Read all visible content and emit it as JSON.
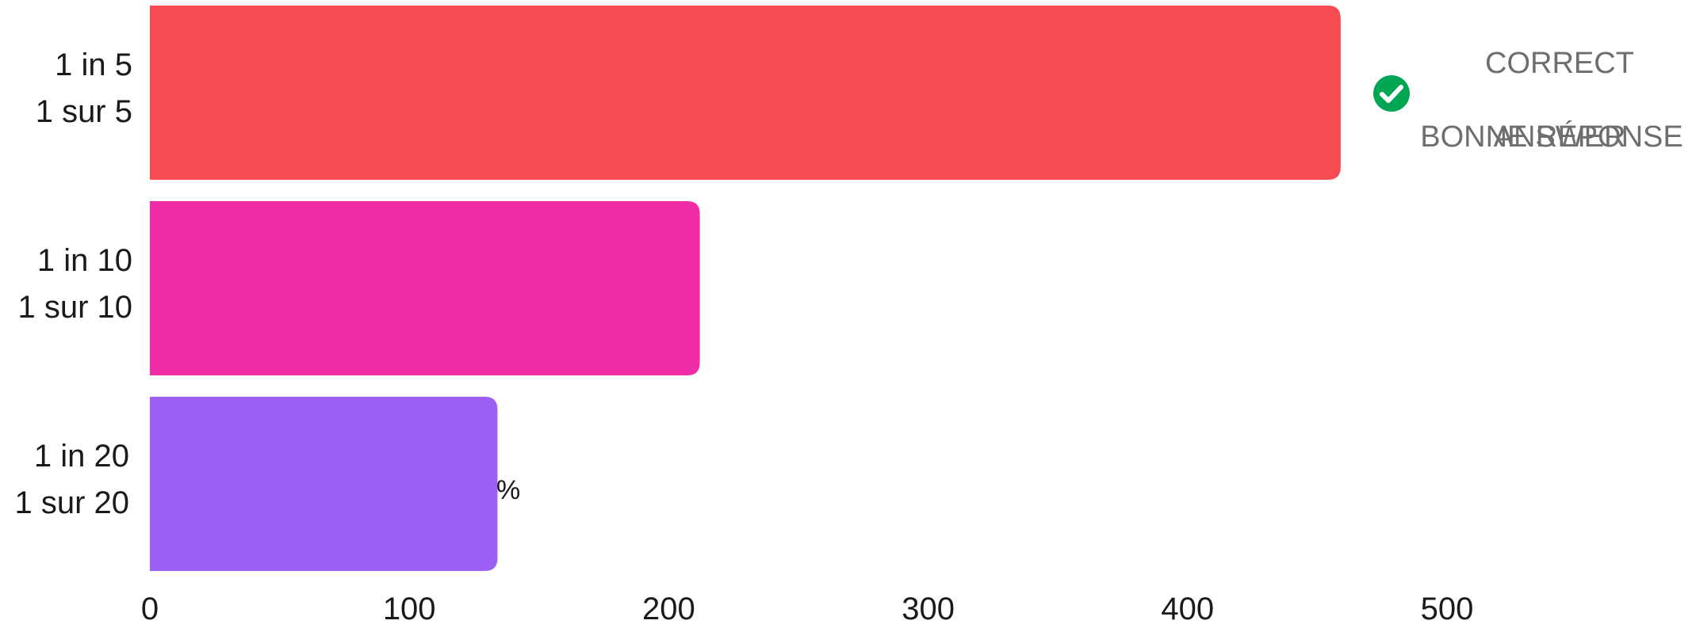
{
  "chart_data": {
    "type": "bar",
    "orientation": "horizontal",
    "categories": [
      [
        "1 in 5",
        "1 sur 5"
      ],
      [
        "1 in 10",
        "1 sur 10"
      ],
      [
        "1 in 20",
        "1 sur 20"
      ]
    ],
    "values": [
      459,
      212,
      134
    ],
    "colors": [
      "#f74c53",
      "#f02da7",
      "#9d60f5"
    ],
    "xlim": [
      0,
      500
    ],
    "xticks": [
      "0",
      "100",
      "200",
      "300",
      "400",
      "500"
    ],
    "grid": false,
    "value_suffix": "%",
    "annotation": {
      "icon": "check-circle-icon",
      "icon_color": "#00a651",
      "lines": [
        "CORRECT",
        "ANSWER",
        "BONNE RÉPONSE"
      ],
      "text_color": "#6e6e6e"
    }
  }
}
